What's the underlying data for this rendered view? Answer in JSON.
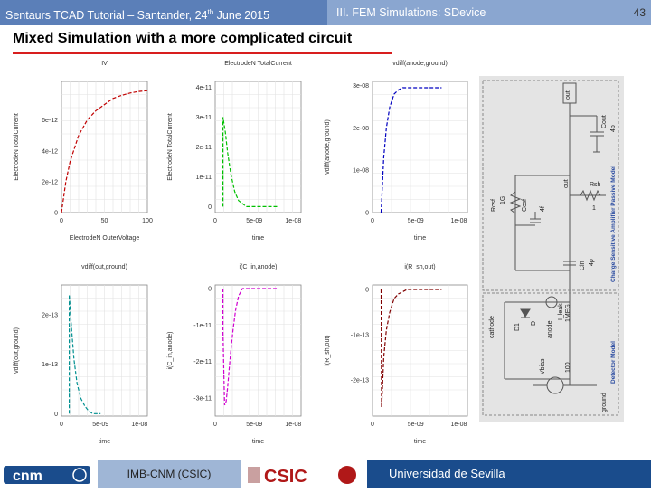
{
  "header": {
    "left_title": "Sentaurs TCAD Tutorial – Santander, 24",
    "left_sup": "th",
    "left_suffix": " June 2015",
    "right_title": "III. FEM Simulations: SDevice",
    "page_number": "43"
  },
  "slide": {
    "title": "Mixed Simulation with a more complicated circuit"
  },
  "plots": [
    {
      "title": "IV",
      "ylabel": "ElectrodeN TotalCurrent",
      "xlabel": "ElectrodeN OuterVoltage",
      "yticks": [
        "0",
        "2e-12",
        "4e-12",
        "6e-12"
      ],
      "xticks": [
        "0",
        "50",
        "100"
      ]
    },
    {
      "title": "ElectrodeN TotalCurrent",
      "ylabel": "ElectrodeN TotalCurrent",
      "xlabel": "time",
      "yticks": [
        "0",
        "1e-11",
        "2e-11",
        "3e-11",
        "4e-11"
      ],
      "xticks": [
        "0",
        "5e-09",
        "1e-08"
      ]
    },
    {
      "title": "vdiff(anode,ground)",
      "ylabel": "vdiff(anode,ground)",
      "xlabel": "time",
      "yticks": [
        "0",
        "1e-08",
        "2e-08",
        "3e-08"
      ],
      "xticks": [
        "0",
        "5e-09",
        "1e-08"
      ]
    },
    {
      "title": "vdiff(out,ground)",
      "ylabel": "vdiff(out,ground)",
      "xlabel": "time",
      "yticks": [
        "0",
        "1e-13",
        "2e-13"
      ],
      "xticks": [
        "0",
        "5e-09",
        "1e-08"
      ]
    },
    {
      "title": "i(C_in,anode)",
      "ylabel": "i(C_in,anode)",
      "xlabel": "time",
      "yticks": [
        "0",
        "-1e-11",
        "-2e-11",
        "-3e-11"
      ],
      "xticks": [
        "0",
        "5e-09",
        "1e-08"
      ]
    },
    {
      "title": "i(R_sh,out)",
      "ylabel": "i(R_sh,out)",
      "xlabel": "time",
      "yticks": [
        "0",
        "-1e-13",
        "-2e-13"
      ],
      "xticks": [
        "0",
        "5e-09",
        "1e-08"
      ]
    }
  ],
  "chart_data": [
    {
      "type": "line",
      "title": "IV",
      "xlabel": "ElectrodeN OuterVoltage",
      "ylabel": "ElectrodeN TotalCurrent",
      "color": "#c00000",
      "x": [
        0,
        5,
        10,
        20,
        30,
        40,
        50,
        60,
        70,
        80,
        90,
        100
      ],
      "y": [
        0,
        2e-12,
        3.3e-12,
        5e-12,
        6e-12,
        6.6e-12,
        7e-12,
        7.4e-12,
        7.6e-12,
        7.75e-12,
        7.85e-12,
        7.9e-12
      ],
      "xlim": [
        0,
        100
      ],
      "ylim": [
        0,
        8.5e-12
      ]
    },
    {
      "type": "line",
      "title": "ElectrodeN TotalCurrent",
      "xlabel": "time",
      "ylabel": "ElectrodeN TotalCurrent",
      "color": "#00c000",
      "x": [
        1e-09,
        1e-09,
        1.3e-09,
        1.6e-09,
        2e-09,
        2.5e-09,
        3e-09,
        3.5e-09,
        4e-09,
        5e-09,
        6e-09,
        7e-09,
        8e-09
      ],
      "y": [
        0,
        3e-11,
        2.5e-11,
        1.8e-11,
        1.1e-11,
        5e-12,
        2e-12,
        1e-12,
        0,
        0,
        0,
        0,
        0
      ],
      "xlim": [
        0,
        1.1e-08
      ],
      "ylim": [
        -2e-12,
        4.2e-11
      ]
    },
    {
      "type": "line",
      "title": "vdiff(anode,ground)",
      "xlabel": "time",
      "ylabel": "vdiff(anode,ground)",
      "color": "#0000c0",
      "x": [
        1e-09,
        1.3e-09,
        1.6e-09,
        2e-09,
        2.5e-09,
        3e-09,
        3.5e-09,
        4e-09,
        5e-09,
        6e-09,
        7e-09,
        8e-09
      ],
      "y": [
        0,
        1.3e-08,
        2e-08,
        2.5e-08,
        2.8e-08,
        2.9e-08,
        2.95e-08,
        2.95e-08,
        2.95e-08,
        2.95e-08,
        2.95e-08,
        2.95e-08
      ],
      "xlim": [
        0,
        1.1e-08
      ],
      "ylim": [
        0,
        3.1e-08
      ]
    },
    {
      "type": "line",
      "title": "vdiff(out,ground)",
      "xlabel": "time",
      "ylabel": "vdiff(out,ground)",
      "color": "#009090",
      "x": [
        1e-09,
        1e-09,
        1.3e-09,
        1.6e-09,
        2e-09,
        2.5e-09,
        3e-09,
        3.5e-09,
        4e-09,
        5e-09
      ],
      "y": [
        0,
        2.4e-13,
        1.7e-13,
        1.1e-13,
        6e-14,
        3e-14,
        1.5e-14,
        5e-15,
        0,
        0
      ],
      "xlim": [
        0,
        1.1e-08
      ],
      "ylim": [
        -5e-15,
        2.6e-13
      ]
    },
    {
      "type": "line",
      "title": "i(C_in,anode)",
      "xlabel": "time",
      "ylabel": "i(C_in,anode)",
      "color": "#d000d0",
      "x": [
        1e-09,
        1e-09,
        1.2e-09,
        1.4e-09,
        1.6e-09,
        1.8e-09,
        2e-09,
        2.3e-09,
        2.6e-09,
        3e-09,
        3.5e-09,
        4e-09,
        5e-09,
        6e-09,
        7e-09,
        8e-09
      ],
      "y": [
        0,
        -1.2e-11,
        -3.2e-11,
        -3.1e-11,
        -2.7e-11,
        -2.2e-11,
        -1.7e-11,
        -1.1e-11,
        -6e-12,
        -2e-12,
        0,
        0,
        0,
        0,
        0,
        0
      ],
      "xlim": [
        0,
        1.1e-08
      ],
      "ylim": [
        -3.5e-11,
        1e-12
      ]
    },
    {
      "type": "line",
      "title": "i(R_sh,out)",
      "xlabel": "time",
      "ylabel": "i(R_sh,out)",
      "color": "#800000",
      "x": [
        1e-09,
        1.05e-09,
        1.1e-09,
        1.3e-09,
        1.6e-09,
        2e-09,
        2.5e-09,
        3e-09,
        4e-09,
        5e-09,
        6e-09,
        7e-09,
        8e-09
      ],
      "y": [
        0,
        -2.6e-13,
        -2.4e-13,
        -1.5e-13,
        -9e-14,
        -5e-14,
        -2e-14,
        -1e-14,
        0,
        0,
        0,
        0,
        0
      ],
      "xlim": [
        0,
        1.1e-08
      ],
      "ylim": [
        -2.8e-13,
        1e-14
      ]
    }
  ],
  "circuit": {
    "labels": {
      "out": "out",
      "cout": "Cout",
      "cout_val": "4p",
      "rcsf": "Rcsf",
      "rcsf_val": "1G",
      "ccsf": "Ccsf",
      "ccsf_val": "4f",
      "out2": "out",
      "rsh": "Rsh",
      "rsh_val": "1",
      "cin": "Cin",
      "cin_val": "4p",
      "ileak": "I_leak",
      "ileak_val": "1MEG",
      "cathode": "cathode",
      "d1": "D1",
      "d1_val": "D",
      "anode": "anode",
      "vbias": "Vbias",
      "vbias_val": "100",
      "ground": "ground",
      "model_upper": "Charge Sensitive Amplifier Passive Model",
      "model_lower": "Detector Model"
    }
  },
  "footer": {
    "logo1": "cnm",
    "imb": "IMB-CNM (CSIC)",
    "csic": "CSIC",
    "us_text": "Universidad de Sevilla"
  },
  "colors": {
    "header_left": "#5b7fb8",
    "header_right": "#8aa6d0",
    "title_rule": "#d81e1e",
    "footer_dark": "#1a4c8c"
  }
}
